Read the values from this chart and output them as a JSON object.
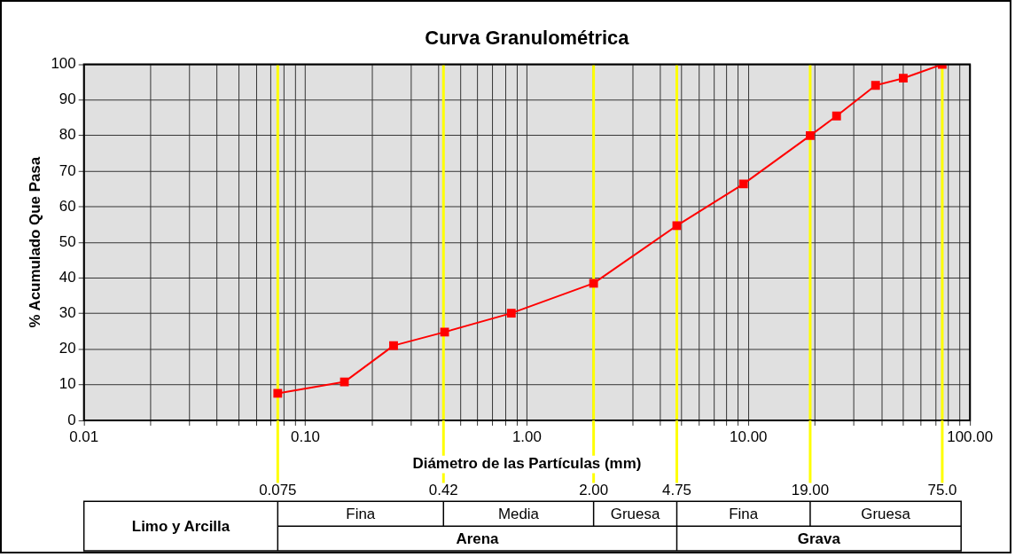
{
  "chart_data": {
    "type": "line",
    "title": "Curva Granulométrica",
    "xlabel": "Diámetro de las Partículas (mm)",
    "ylabel": "% Acumulado Que Pasa",
    "x": [
      0.075,
      0.15,
      0.25,
      0.425,
      0.85,
      2.0,
      4.75,
      9.5,
      19,
      25,
      37.5,
      50,
      75
    ],
    "series": [
      {
        "color": "#ff0000",
        "values": [
          7.6,
          10.8,
          21,
          24.8,
          30.1,
          38.5,
          54.7,
          66.4,
          80,
          85.5,
          94.1,
          96.1,
          100
        ]
      }
    ],
    "log": "x",
    "xlim": [
      0.01,
      100
    ],
    "ylim": [
      0,
      100
    ],
    "xticks": [
      {
        "value": 0.01,
        "label": "0.01"
      },
      {
        "value": 0.02,
        "label": null
      },
      {
        "value": 0.03,
        "label": null
      },
      {
        "value": 0.04,
        "label": null
      },
      {
        "value": 0.05,
        "label": null
      },
      {
        "value": 0.06,
        "label": null
      },
      {
        "value": 0.07,
        "label": null
      },
      {
        "value": 0.08,
        "label": null
      },
      {
        "value": 0.09,
        "label": null
      },
      {
        "value": 0.1,
        "label": "0.10"
      },
      {
        "value": 0.2,
        "label": null
      },
      {
        "value": 0.3,
        "label": null
      },
      {
        "value": 0.4,
        "label": null
      },
      {
        "value": 0.5,
        "label": null
      },
      {
        "value": 0.6,
        "label": null
      },
      {
        "value": 0.7,
        "label": null
      },
      {
        "value": 0.8,
        "label": null
      },
      {
        "value": 0.9,
        "label": null
      },
      {
        "value": 1,
        "label": "1.00"
      },
      {
        "value": 2,
        "label": null
      },
      {
        "value": 3,
        "label": null
      },
      {
        "value": 4,
        "label": null
      },
      {
        "value": 5,
        "label": null
      },
      {
        "value": 6,
        "label": null
      },
      {
        "value": 7,
        "label": null
      },
      {
        "value": 8,
        "label": null
      },
      {
        "value": 9,
        "label": null
      },
      {
        "value": 10,
        "label": "10.00"
      },
      {
        "value": 20,
        "label": null
      },
      {
        "value": 30,
        "label": null
      },
      {
        "value": 40,
        "label": null
      },
      {
        "value": 50,
        "label": null
      },
      {
        "value": 60,
        "label": null
      },
      {
        "value": 70,
        "label": null
      },
      {
        "value": 80,
        "label": null
      },
      {
        "value": 90,
        "label": null
      },
      {
        "value": 100,
        "label": "100.00"
      }
    ],
    "yticks": [
      0,
      10,
      20,
      30,
      40,
      50,
      60,
      70,
      80,
      90,
      100
    ],
    "grid": true,
    "marker": "square",
    "line_style": "solid",
    "ref_lines": [
      {
        "axis": "x",
        "value": 0.075,
        "label": "0.075",
        "color": "#ffff00"
      },
      {
        "axis": "x",
        "value": 0.42,
        "label": "0.42",
        "color": "#ffff00"
      },
      {
        "axis": "x",
        "value": 2.0,
        "label": "2.00",
        "color": "#ffff00"
      },
      {
        "axis": "x",
        "value": 4.75,
        "label": "4.75",
        "color": "#ffff00"
      },
      {
        "axis": "x",
        "value": 19,
        "label": "19.00",
        "color": "#ffff00"
      },
      {
        "axis": "x",
        "value": 75,
        "label": "75.0",
        "color": "#ffff00"
      }
    ],
    "annotations": [
      "Limo y Arcilla",
      "Fina",
      "Media",
      "Gruesa",
      "Fina",
      "Gruesa",
      "Arena",
      "Grava"
    ]
  }
}
